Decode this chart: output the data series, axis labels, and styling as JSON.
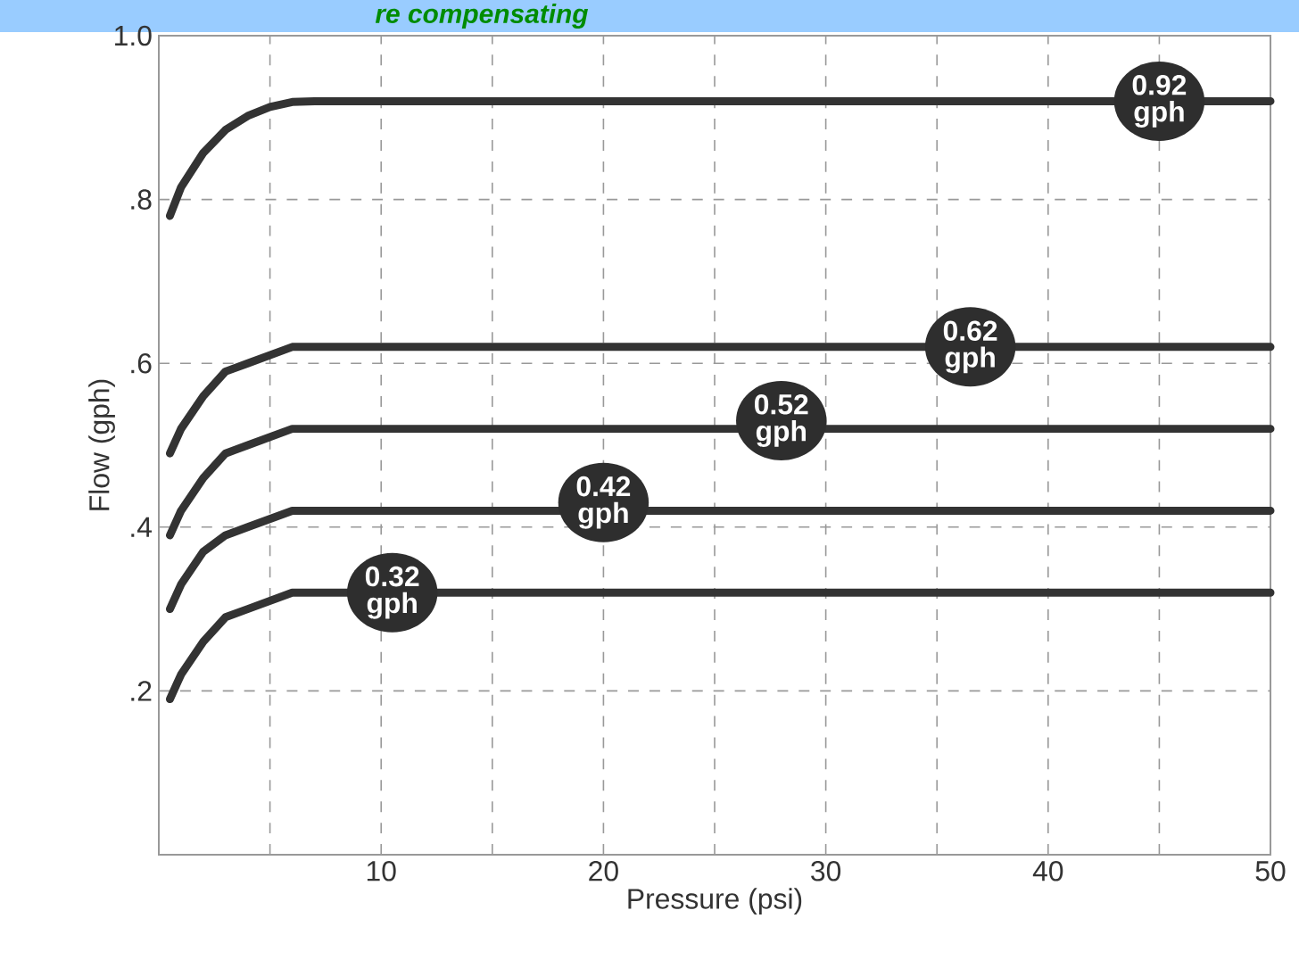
{
  "chart_data": {
    "type": "line",
    "title": "re compensating",
    "xlabel": "Pressure (psi)",
    "ylabel": "Flow (gph)",
    "x": [
      0.5,
      1,
      2,
      3,
      4,
      5,
      6,
      7,
      50
    ],
    "series": [
      {
        "color": "#333333",
        "values": [
          0.78,
          0.815,
          0.857,
          0.885,
          0.902,
          0.913,
          0.919,
          0.92,
          0.92
        ]
      },
      {
        "color": "#333333",
        "values": [
          0.49,
          0.52,
          0.56,
          0.59,
          0.6,
          0.61,
          0.62,
          0.62,
          0.62
        ]
      },
      {
        "color": "#333333",
        "values": [
          0.39,
          0.42,
          0.46,
          0.49,
          0.5,
          0.51,
          0.52,
          0.52,
          0.52
        ]
      },
      {
        "color": "#333333",
        "values": [
          0.3,
          0.33,
          0.37,
          0.39,
          0.4,
          0.41,
          0.42,
          0.42,
          0.42
        ]
      },
      {
        "color": "#333333",
        "values": [
          0.19,
          0.22,
          0.26,
          0.29,
          0.3,
          0.31,
          0.32,
          0.32,
          0.32
        ]
      }
    ],
    "annotations": [
      {
        "text": "0.92 gph",
        "x": 45,
        "y": 0.92
      },
      {
        "text": "0.62 gph",
        "x": 36.5,
        "y": 0.62
      },
      {
        "text": "0.52 gph",
        "x": 28,
        "y": 0.53
      },
      {
        "text": "0.42 gph",
        "x": 20,
        "y": 0.43
      },
      {
        "text": "0.32 gph",
        "x": 10.5,
        "y": 0.32
      }
    ],
    "xlim": [
      0,
      50
    ],
    "ylim": [
      0,
      1
    ],
    "xticks": [
      {
        "value": 5,
        "label": null
      },
      10,
      {
        "value": 15,
        "label": null
      },
      20,
      {
        "value": 25,
        "label": null
      },
      30,
      {
        "value": 35,
        "label": null
      },
      40,
      {
        "value": 45,
        "label": null
      },
      50
    ],
    "yticks": [
      {
        "value": 0.2,
        "label": ".2"
      },
      {
        "value": 0.4,
        "label": ".4"
      },
      {
        "value": 0.6,
        "label": ".6"
      },
      {
        "value": 0.8,
        "label": ".8"
      },
      {
        "value": 1.0,
        "label": "1.0"
      }
    ],
    "grid": true,
    "marker": "none",
    "line_style": "solid"
  }
}
